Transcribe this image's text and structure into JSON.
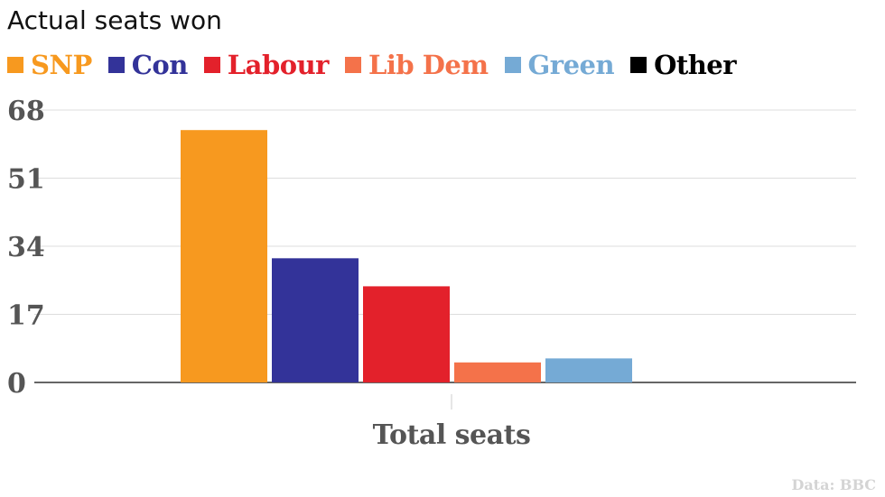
{
  "chart_data": {
    "type": "bar",
    "title": "Actual seats won",
    "categories": [
      "Total seats"
    ],
    "series": [
      {
        "name": "SNP",
        "color": "#f7991f",
        "values": [
          63
        ]
      },
      {
        "name": "Con",
        "color": "#333399",
        "values": [
          31
        ]
      },
      {
        "name": "Labour",
        "color": "#e3212b",
        "values": [
          24
        ]
      },
      {
        "name": "Lib Dem",
        "color": "#f4724a",
        "values": [
          5
        ]
      },
      {
        "name": "Green",
        "color": "#75aad5",
        "values": [
          6
        ]
      },
      {
        "name": "Other",
        "color": "#000000",
        "values": [
          0
        ]
      }
    ],
    "yticks": [
      "0",
      "17",
      "34",
      "51",
      "68"
    ],
    "ylim": [
      0,
      68
    ],
    "grid": true,
    "legend": "top-left",
    "credit": "Data: BBC"
  }
}
